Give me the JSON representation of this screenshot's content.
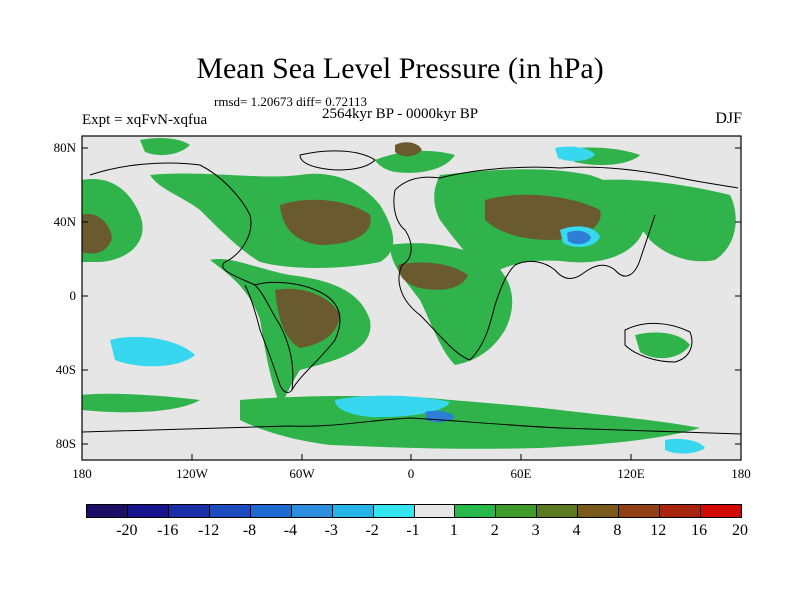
{
  "title": "Mean Sea Level Pressure (in hPa)",
  "stats_text": "rmsd= 1.20673  diff= 0.72113",
  "period": "2564kyr BP - 0000kyr BP",
  "experiment": "Expt = xqFvN-xqfua",
  "season": "DJF",
  "lat_ticks": [
    "80N",
    "40N",
    "0",
    "40S",
    "80S"
  ],
  "lon_ticks": [
    "180",
    "120W",
    "60W",
    "0",
    "60E",
    "120E",
    "180"
  ],
  "colorbar": {
    "labels": [
      "-20",
      "-16",
      "-12",
      "-8",
      "-4",
      "-3",
      "-2",
      "-1",
      "1",
      "2",
      "3",
      "4",
      "8",
      "12",
      "16",
      "20"
    ],
    "colors": [
      "#1c0d66",
      "#16148c",
      "#1a2ea8",
      "#1c4bbd",
      "#1f6ad0",
      "#2d8ee0",
      "#25b5e8",
      "#34e4ef",
      "#e6e6e6",
      "#27b849",
      "#3f9b2b",
      "#5c7a22",
      "#7a5a1a",
      "#904014",
      "#a8250d",
      "#d20a06"
    ]
  },
  "colors": {
    "background": "#e6e6e6",
    "green": "#2fb34a",
    "olive": "#5b7a2c",
    "brown": "#6a5a30",
    "cyan": "#37d8ef",
    "blue": "#2f7ed6"
  }
}
